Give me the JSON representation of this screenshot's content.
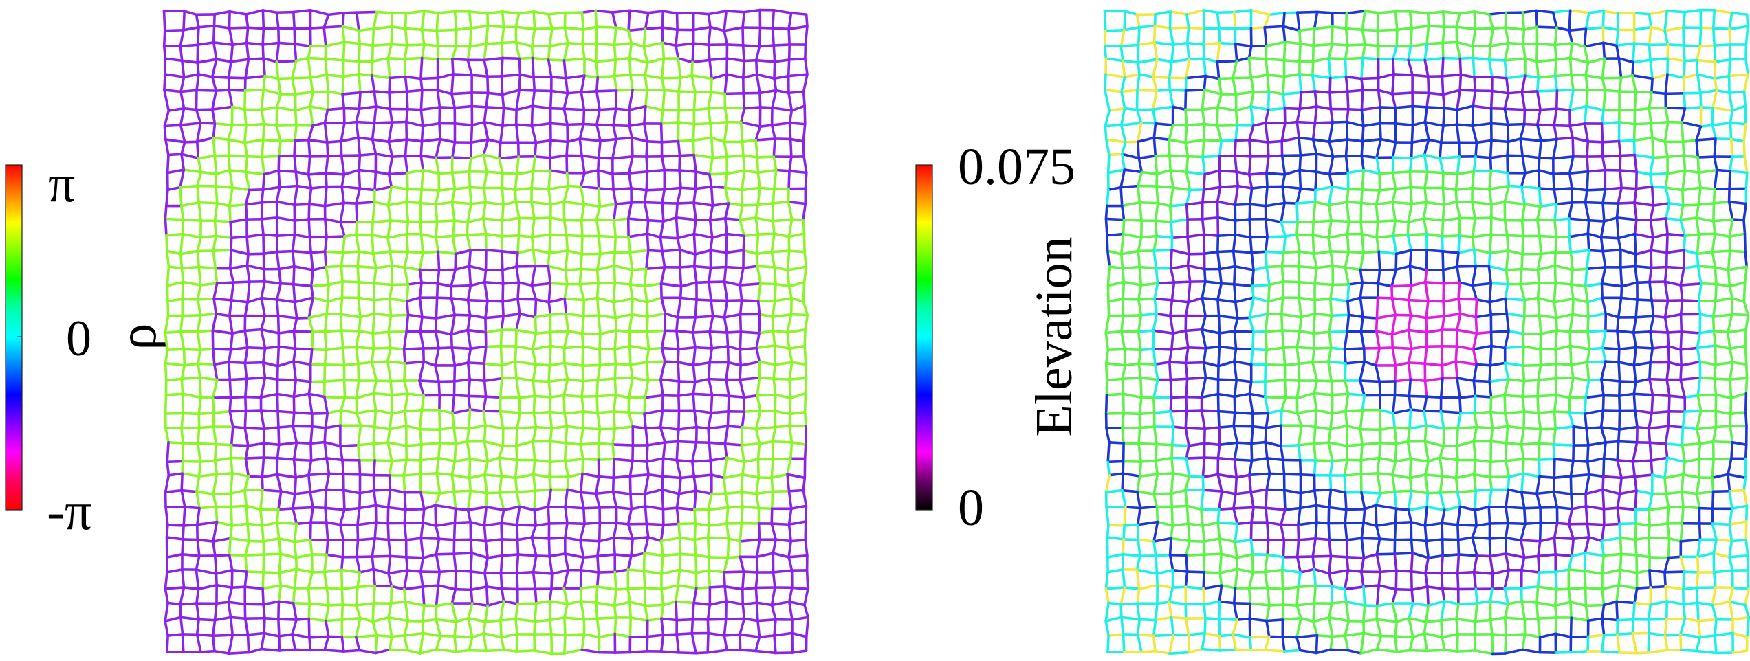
{
  "left_panel": {
    "colorbar": {
      "top_label": "π",
      "mid_label": "0",
      "bottom_label": "-π",
      "title": "ρ",
      "stops": [
        "#ff0000",
        "#ff7f00",
        "#ffff00",
        "#80ff00",
        "#00ff00",
        "#00ffaa",
        "#00ffff",
        "#0080ff",
        "#0000ff",
        "#8000ff",
        "#ff00ff",
        "#ff0060",
        "#ff0000"
      ]
    },
    "mesh_colors": {
      "green": "#8cf52a",
      "purple": "#8a24ea"
    }
  },
  "right_panel": {
    "colorbar": {
      "top_label": "0.075",
      "bottom_label": "0",
      "title": "Elevation",
      "stops": [
        "#ff0000",
        "#ff8000",
        "#ffff00",
        "#80ff00",
        "#00ff00",
        "#00ffaa",
        "#00ffff",
        "#0080ff",
        "#0000ff",
        "#8000ff",
        "#ff00ff",
        "#6a006a",
        "#000000"
      ]
    },
    "mesh_colors": {
      "cyan": "#1ff0e6",
      "green": "#5ef24a",
      "blue": "#1e35d8",
      "purple": "#7a22e0",
      "magenta": "#e01ee0",
      "yellow": "#f2e640"
    }
  }
}
